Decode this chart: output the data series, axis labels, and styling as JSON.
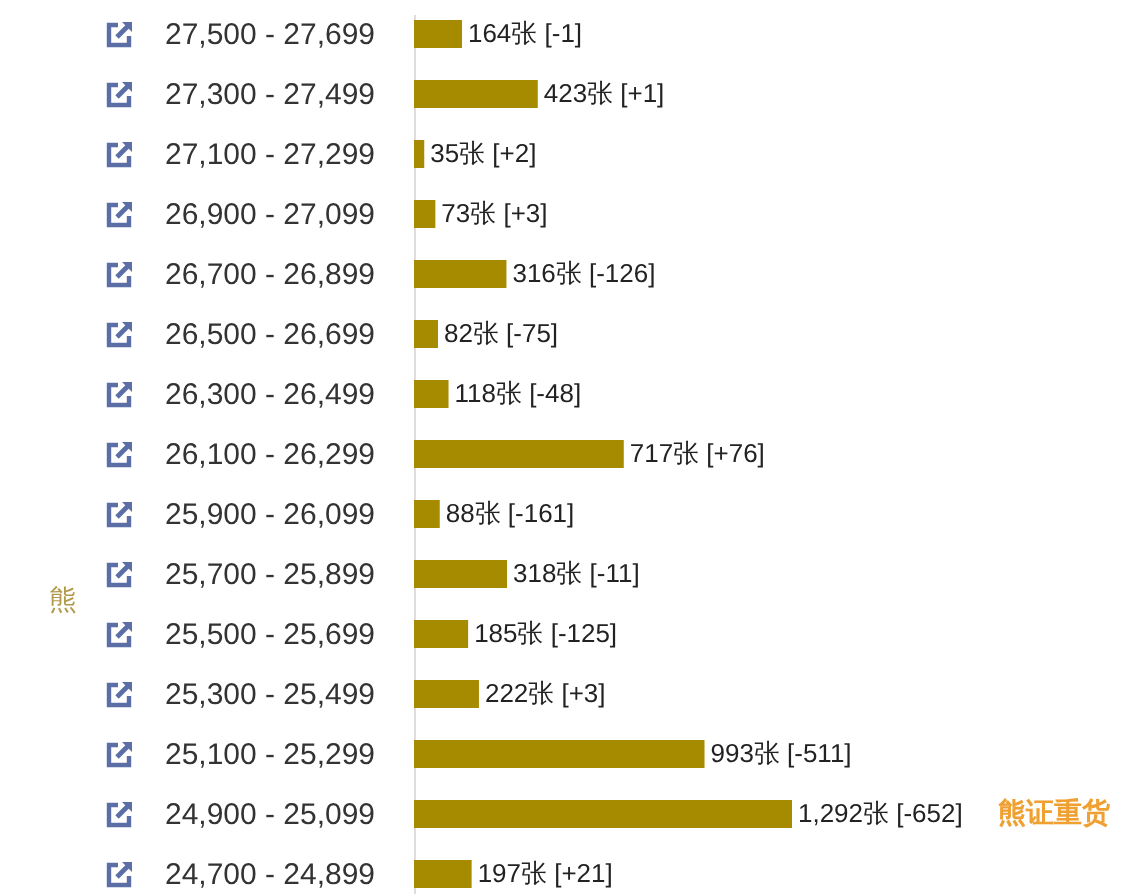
{
  "chart_data": {
    "type": "bar",
    "orientation": "horizontal",
    "ylabel": "熊",
    "categories": [
      "27,500 - 27,699",
      "27,300 - 27,499",
      "27,100 - 27,299",
      "26,900 - 27,099",
      "26,700 - 26,899",
      "26,500 - 26,699",
      "26,300 - 26,499",
      "26,100 - 26,299",
      "25,900 - 26,099",
      "25,700 - 25,899",
      "25,500 - 25,699",
      "25,300 - 25,499",
      "25,100 - 25,299",
      "24,900 - 25,099",
      "24,700 - 24,899"
    ],
    "values": [
      164,
      423,
      35,
      73,
      316,
      82,
      118,
      717,
      88,
      318,
      185,
      222,
      993,
      1292,
      197
    ],
    "value_labels": [
      "164张 [-1]",
      "423张 [+1]",
      "35张 [+2]",
      "73张 [+3]",
      "316张 [-126]",
      "82张 [-75]",
      "118张 [-48]",
      "717张 [+76]",
      "88张 [-161]",
      "318张 [-11]",
      "185张 [-125]",
      "222张 [+3]",
      "993张 [-511]",
      "1,292张 [-652]",
      "197张 [+21]"
    ],
    "color": "#a68b00",
    "annotations": [
      "熊证重货"
    ],
    "tick_labels": "y"
  }
}
